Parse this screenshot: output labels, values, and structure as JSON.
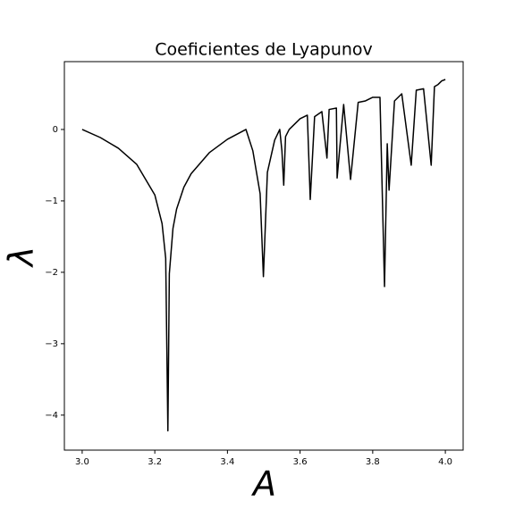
{
  "chart_data": {
    "type": "line",
    "title": "Coeficientes de Lyapunov",
    "x_label": "A",
    "y_label": "λ",
    "x": [
      3.0,
      3.05,
      3.1,
      3.15,
      3.2,
      3.22,
      3.23,
      3.236,
      3.24,
      3.25,
      3.26,
      3.28,
      3.3,
      3.35,
      3.4,
      3.451,
      3.47,
      3.49,
      3.499,
      3.51,
      3.53,
      3.544,
      3.55,
      3.555,
      3.56,
      3.57,
      3.58,
      3.6,
      3.62,
      3.628,
      3.64,
      3.66,
      3.674,
      3.68,
      3.7,
      3.702,
      3.72,
      3.739,
      3.76,
      3.78,
      3.8,
      3.82,
      3.8325,
      3.84,
      3.845,
      3.86,
      3.88,
      3.906,
      3.92,
      3.94,
      3.961,
      3.97,
      3.98,
      3.99,
      4.0
    ],
    "values": [
      0,
      -0.113,
      -0.264,
      -0.487,
      -0.916,
      -1.318,
      -1.804,
      -4.22,
      -2.02,
      -1.386,
      -1.115,
      -0.809,
      -0.619,
      -0.325,
      -0.137,
      0,
      -0.3,
      -0.9,
      -2.06,
      -0.6,
      -0.15,
      0,
      -0.3,
      -0.78,
      -0.1,
      0,
      0.05,
      0.15,
      0.2,
      -0.98,
      0.18,
      0.25,
      -0.4,
      0.28,
      0.3,
      -0.68,
      0.35,
      -0.7,
      0.38,
      0.4,
      0.45,
      0.45,
      -2.2,
      -0.2,
      -0.85,
      0.4,
      0.5,
      -0.5,
      0.55,
      0.57,
      -0.5,
      0.6,
      0.63,
      0.68,
      0.7
    ],
    "color": "#000000",
    "xlim": [
      2.951,
      4.049
    ],
    "ylim": [
      -4.49,
      0.95
    ],
    "xticks": [
      {
        "value": 3,
        "label": "3.0"
      },
      {
        "value": 3.2,
        "label": "3.2"
      },
      {
        "value": 3.4,
        "label": "3.4"
      },
      {
        "value": 3.6,
        "label": "3.6"
      },
      {
        "value": 3.8,
        "label": "3.8"
      },
      {
        "value": 4,
        "label": "4.0"
      }
    ],
    "yticks": [
      {
        "value": -4,
        "label": "−4"
      },
      {
        "value": -3,
        "label": "−3"
      },
      {
        "value": -2,
        "label": "−2"
      },
      {
        "value": -1,
        "label": "−1"
      },
      0
    ]
  }
}
